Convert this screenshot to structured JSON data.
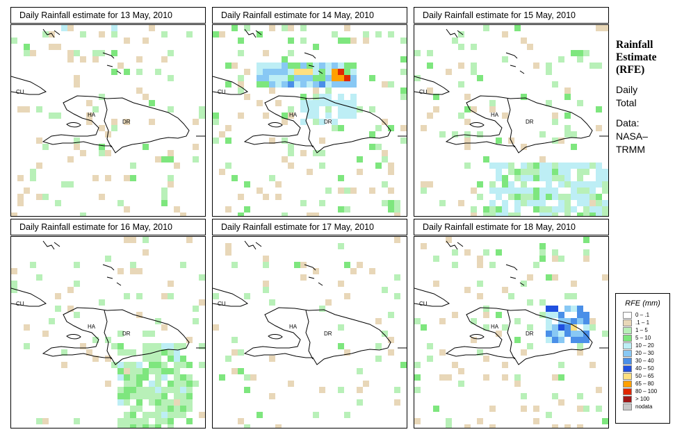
{
  "panels": [
    {
      "title": "Daily Rainfall estimate for  13 May, 2010"
    },
    {
      "title": "Daily Rainfall estimate for  14 May, 2010"
    },
    {
      "title": "Daily Rainfall estimate for  15 May, 2010"
    },
    {
      "title": "Daily Rainfall estimate for  16 May, 2010"
    },
    {
      "title": "Daily Rainfall estimate for  17 May, 2010"
    },
    {
      "title": "Daily Rainfall estimate for  18 May, 2010"
    }
  ],
  "map_labels": {
    "cu": "CU",
    "ha": "HA",
    "dr": "DR"
  },
  "side": {
    "title_lines": [
      "Rainfall",
      "Estimate",
      "(RFE)"
    ],
    "daily_lines": [
      "Daily",
      "Total"
    ],
    "data_lines": [
      "Data:",
      "NASA–",
      "TRMM"
    ]
  },
  "legend": {
    "title": "RFE (mm)",
    "items": [
      {
        "label": "0 – .1",
        "color": "#ffffff"
      },
      {
        "label": ".1 – 1",
        "color": "#e8d7b8"
      },
      {
        "label": "1 – 5",
        "color": "#b8f0b8"
      },
      {
        "label": "5 – 10",
        "color": "#7ee67e"
      },
      {
        "label": "10 – 20",
        "color": "#bdeef5"
      },
      {
        "label": "20 – 30",
        "color": "#88c8f4"
      },
      {
        "label": "30 – 40",
        "color": "#4a8fe8"
      },
      {
        "label": "40 – 50",
        "color": "#2050e0"
      },
      {
        "label": "50 – 65",
        "color": "#ffe080"
      },
      {
        "label": "65 – 80",
        "color": "#ffa000"
      },
      {
        "label": "80 – 100",
        "color": "#e02800"
      },
      {
        "label": "> 100",
        "color": "#a01818"
      },
      {
        "label": "nodata",
        "color": "#c8c8c8"
      }
    ]
  }
}
